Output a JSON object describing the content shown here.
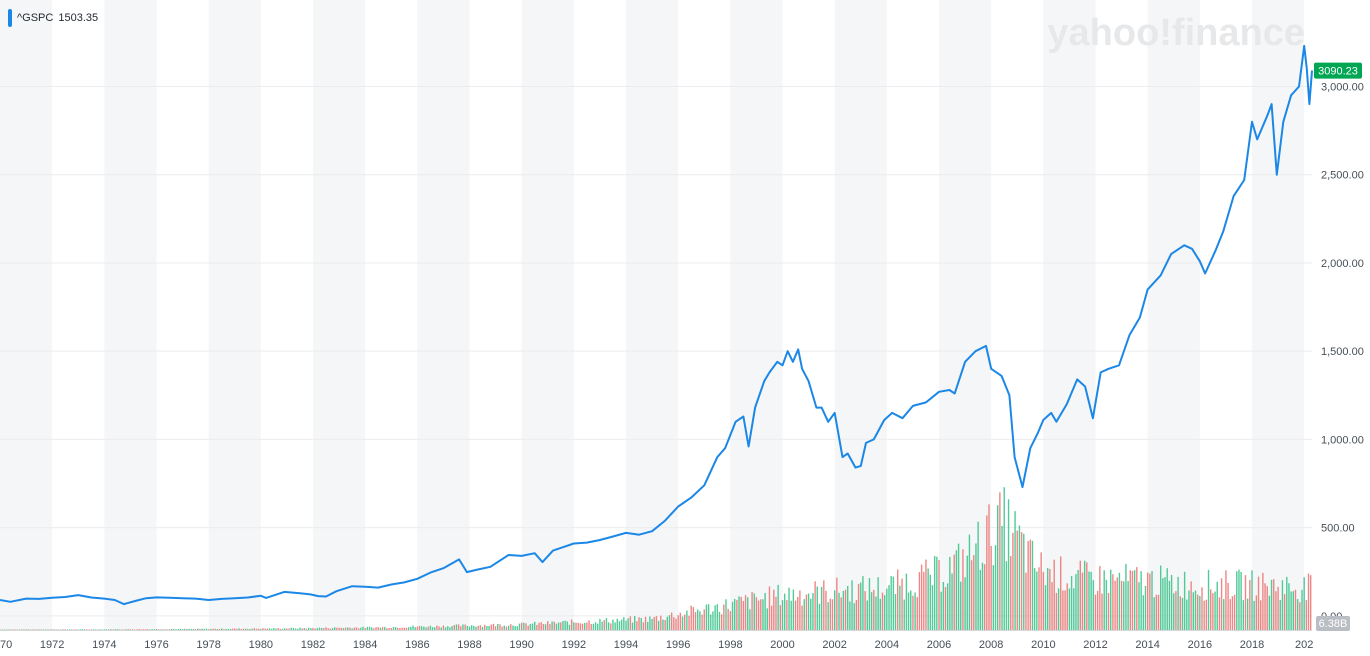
{
  "legend": {
    "symbol": "^GSPC",
    "value": "1503.35",
    "color": "#1b87e6"
  },
  "watermark": "yahoo!finance",
  "last_price_tag": {
    "text": "3090.23",
    "color": "#00a653"
  },
  "volume_tag": {
    "text": "6.38B",
    "color": "#b9bdc4"
  },
  "colors": {
    "line": "#1b87e6",
    "vol_up": "#32c186",
    "vol_down": "#ea7270",
    "band": "#f5f6f7"
  },
  "chart_data": {
    "type": "line",
    "x_ticks": [
      "70",
      "1972",
      "1974",
      "1976",
      "1978",
      "1980",
      "1982",
      "1984",
      "1986",
      "1988",
      "1990",
      "1992",
      "1994",
      "1996",
      "1998",
      "2000",
      "2002",
      "2004",
      "2006",
      "2008",
      "2010",
      "2012",
      "2014",
      "2016",
      "2018",
      "202"
    ],
    "y_ticks": [
      "0.00",
      "500.00",
      "1,000.00",
      "1,500.00",
      "2,000.00",
      "2,500.00",
      "3,000.00"
    ],
    "ylim": [
      -80,
      3490
    ],
    "xlim": [
      1970.0,
      2020.3
    ],
    "series": [
      {
        "name": "^GSPC",
        "x": [
          1970.0,
          1970.4,
          1971.0,
          1971.5,
          1972.0,
          1972.5,
          1973.0,
          1973.5,
          1974.0,
          1974.4,
          1974.75,
          1975.2,
          1975.6,
          1976.0,
          1976.5,
          1977.0,
          1977.5,
          1978.0,
          1978.5,
          1979.0,
          1979.5,
          1980.0,
          1980.2,
          1980.9,
          1981.5,
          1981.9,
          1982.2,
          1982.5,
          1982.9,
          1983.5,
          1984.0,
          1984.5,
          1985.0,
          1985.5,
          1986.0,
          1986.5,
          1987.0,
          1987.6,
          1987.9,
          1988.3,
          1988.8,
          1989.5,
          1990.0,
          1990.5,
          1990.8,
          1991.2,
          1991.6,
          1992.0,
          1992.5,
          1993.0,
          1993.5,
          1994.0,
          1994.5,
          1995.0,
          1995.5,
          1996.0,
          1996.5,
          1997.0,
          1997.5,
          1997.8,
          1998.2,
          1998.5,
          1998.7,
          1998.95,
          1999.3,
          1999.5,
          1999.8,
          2000.0,
          2000.2,
          2000.4,
          2000.6,
          2000.75,
          2001.0,
          2001.3,
          2001.5,
          2001.75,
          2002.0,
          2002.3,
          2002.5,
          2002.8,
          2003.0,
          2003.2,
          2003.5,
          2003.9,
          2004.2,
          2004.6,
          2005.0,
          2005.5,
          2006.0,
          2006.4,
          2006.6,
          2007.0,
          2007.4,
          2007.8,
          2008.0,
          2008.4,
          2008.7,
          2008.9,
          2009.2,
          2009.5,
          2009.8,
          2010.0,
          2010.3,
          2010.5,
          2010.9,
          2011.3,
          2011.6,
          2011.9,
          2012.2,
          2012.5,
          2012.9,
          2013.3,
          2013.7,
          2014.0,
          2014.5,
          2014.9,
          2015.4,
          2015.7,
          2016.0,
          2016.2,
          2016.6,
          2016.9,
          2017.3,
          2017.7,
          2018.0,
          2018.2,
          2018.6,
          2018.75,
          2018.95,
          2019.2,
          2019.5,
          2019.8,
          2020.0,
          2020.1,
          2020.2,
          2020.3
        ],
        "values": [
          90,
          80,
          98,
          96,
          103,
          107,
          118,
          104,
          98,
          90,
          67,
          85,
          100,
          105,
          103,
          100,
          98,
          90,
          96,
          100,
          104,
          114,
          102,
          136,
          128,
          122,
          112,
          110,
          140,
          168,
          165,
          160,
          178,
          190,
          210,
          245,
          270,
          320,
          248,
          262,
          278,
          345,
          340,
          355,
          305,
          370,
          390,
          410,
          415,
          430,
          450,
          470,
          460,
          480,
          540,
          620,
          670,
          740,
          900,
          950,
          1100,
          1130,
          960,
          1180,
          1330,
          1380,
          1440,
          1420,
          1500,
          1440,
          1510,
          1400,
          1330,
          1180,
          1180,
          1100,
          1150,
          900,
          920,
          840,
          850,
          980,
          1000,
          1110,
          1150,
          1120,
          1190,
          1210,
          1270,
          1280,
          1260,
          1440,
          1500,
          1530,
          1400,
          1360,
          1250,
          900,
          730,
          950,
          1040,
          1110,
          1150,
          1100,
          1200,
          1340,
          1300,
          1120,
          1380,
          1400,
          1420,
          1590,
          1690,
          1850,
          1930,
          2050,
          2100,
          2080,
          2010,
          1940,
          2070,
          2180,
          2380,
          2470,
          2800,
          2700,
          2840,
          2900,
          2500,
          2800,
          2950,
          3000,
          3230,
          3100,
          2900,
          3090
        ]
      }
    ],
    "volume": {
      "x": [
        1970,
        1975,
        1980,
        1985,
        1990,
        1995,
        1998,
        2000,
        2002,
        2004,
        2006,
        2007,
        2008,
        2008.5,
        2009,
        2009.5,
        2010,
        2011,
        2012,
        2014,
        2016,
        2018,
        2020
      ],
      "values": [
        3,
        5,
        10,
        20,
        40,
        80,
        180,
        250,
        280,
        300,
        400,
        500,
        700,
        760,
        650,
        500,
        420,
        380,
        360,
        350,
        320,
        320,
        300
      ],
      "scale_max": 6380000000
    }
  }
}
